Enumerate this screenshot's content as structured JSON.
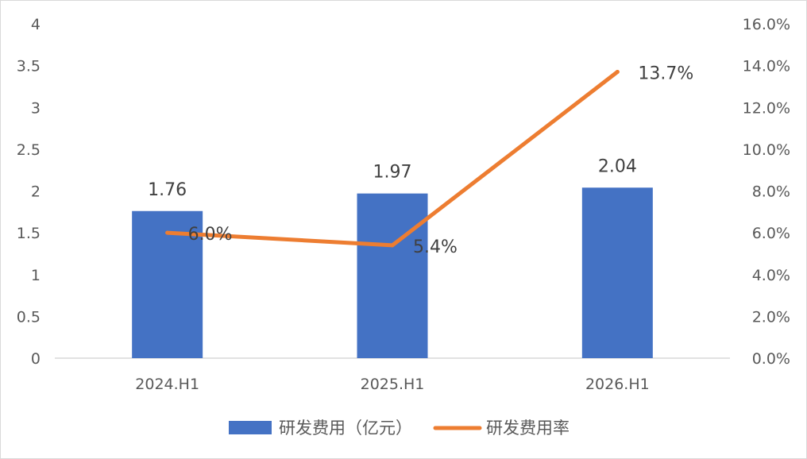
{
  "chart_data": {
    "type": "bar+line",
    "categories": [
      "2024.H1",
      "2025.H1",
      "2026.H1"
    ],
    "series": [
      {
        "name": "研发费用（亿元）",
        "type": "bar",
        "axis": "left",
        "values": [
          1.76,
          1.97,
          2.04
        ],
        "labels": [
          "1.76",
          "1.97",
          "2.04"
        ],
        "color": "#4472C4"
      },
      {
        "name": "研发费用率",
        "type": "line",
        "axis": "right",
        "values": [
          6.0,
          5.4,
          13.7
        ],
        "labels": [
          "6.0%",
          "5.4%",
          "13.7%"
        ],
        "color": "#ED7D31"
      }
    ],
    "y_left": {
      "min": 0,
      "max": 4,
      "ticks": [
        "0",
        "0.5",
        "1",
        "1.5",
        "2",
        "2.5",
        "3",
        "3.5",
        "4"
      ]
    },
    "y_right": {
      "min": 0,
      "max": 16,
      "ticks": [
        "0.0%",
        "2.0%",
        "4.0%",
        "6.0%",
        "8.0%",
        "10.0%",
        "12.0%",
        "14.0%",
        "16.0%"
      ]
    },
    "grid": false,
    "legend_position": "bottom"
  }
}
